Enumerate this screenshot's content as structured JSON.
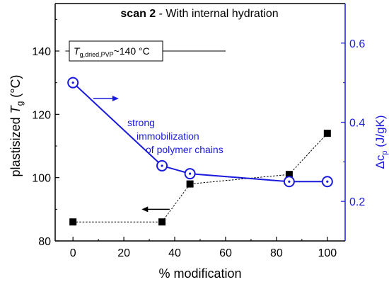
{
  "chart_data": {
    "type": "line",
    "title": {
      "bold": "scan 2",
      "rest": " - With internal hydration"
    },
    "xlabel": "% modification",
    "ylabel_left": {
      "prefix": "plastisized ",
      "var": "T",
      "sub": "g",
      "suffix": " (°C)"
    },
    "ylabel_right": {
      "prefix": "Δc",
      "sub": "p",
      "suffix": " (J/gK)"
    },
    "xlim": [
      -7,
      107
    ],
    "ylim_left": [
      80,
      155
    ],
    "ylim_right": [
      0.1,
      0.7
    ],
    "x_ticks": [
      0,
      20,
      40,
      60,
      80,
      100
    ],
    "x_tick_labels": [
      "0",
      "20",
      "40",
      "60",
      "80",
      "100"
    ],
    "y_left_ticks": [
      80,
      100,
      120,
      140
    ],
    "y_left_tick_labels": [
      "80",
      "100",
      "120",
      "140"
    ],
    "y_right_ticks": [
      0.2,
      0.4,
      0.6
    ],
    "y_right_tick_labels": [
      "0.2",
      "0.4",
      "0.6"
    ],
    "series": [
      {
        "axis": "left",
        "color": "#000000",
        "style": "dotted-square",
        "x": [
          0,
          35,
          46,
          85,
          100
        ],
        "y": [
          86,
          86,
          98,
          101,
          114
        ]
      },
      {
        "axis": "right",
        "color": "#1a1adc",
        "style": "solid-circle-dot",
        "x": [
          0,
          35,
          46,
          85,
          100
        ],
        "y": [
          0.5,
          0.29,
          0.27,
          0.25,
          0.25
        ]
      }
    ],
    "reference_line": {
      "axis": "left",
      "y": 140,
      "x_range": [
        -3,
        60
      ],
      "label": {
        "var": "T",
        "sub": "g,dried,PVP",
        "rest": "~140 °C"
      }
    },
    "annotation": {
      "lines": [
        "strong",
        "immobilization",
        "of polymer chains"
      ],
      "color": "#1a1adc"
    },
    "arrows": [
      {
        "color": "#1a1adc",
        "axis": "left",
        "from": [
          8,
          125
        ],
        "to": [
          18,
          125
        ]
      },
      {
        "color": "#000000",
        "axis": "left",
        "from": [
          38,
          90
        ],
        "to": [
          27,
          90
        ]
      }
    ],
    "colors": {
      "left_axis": "#000000",
      "right_axis": "#1a1adc"
    }
  }
}
